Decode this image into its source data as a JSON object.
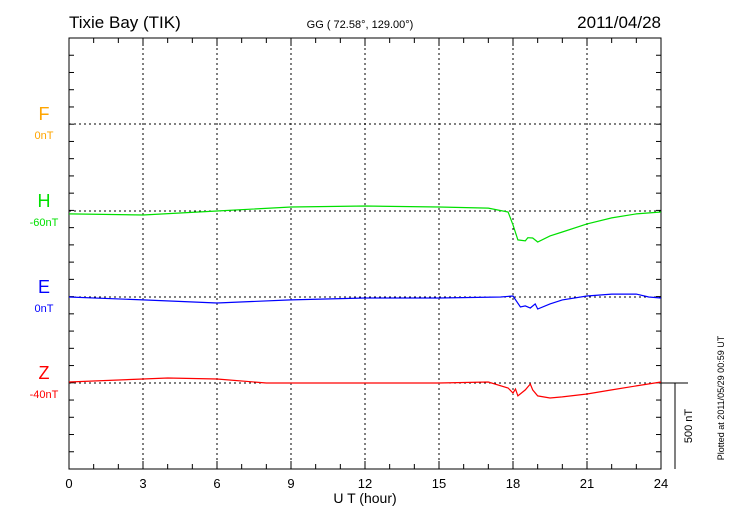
{
  "chart_data": {
    "type": "line",
    "title": "Tixie Bay (TIK)",
    "subtitle": "GG ( 72.58°, 129.00°)",
    "date": "2011/04/28",
    "xlabel": "U T (hour)",
    "xlim": [
      0,
      24
    ],
    "xticks": [
      "0",
      "3",
      "6",
      "9",
      "12",
      "15",
      "18",
      "21",
      "24"
    ],
    "scale_label": "500 nT",
    "scale_nT": 500,
    "plotted_note": "Plotted at 2011/05/29 00:59 UT",
    "grid": true,
    "series": [
      {
        "name": "F",
        "offset_label": "0nT",
        "color": "#ffa500",
        "points": []
      },
      {
        "name": "H",
        "offset_label": "-60nT",
        "color": "#00e000",
        "points": [
          [
            0,
            -17
          ],
          [
            3,
            -23
          ],
          [
            6,
            0
          ],
          [
            9,
            23
          ],
          [
            12,
            29
          ],
          [
            15,
            23
          ],
          [
            17,
            17
          ],
          [
            17.8,
            -6
          ],
          [
            18,
            -81
          ],
          [
            18.2,
            -168
          ],
          [
            18.5,
            -174
          ],
          [
            18.6,
            -155
          ],
          [
            18.8,
            -157
          ],
          [
            19,
            -180
          ],
          [
            19.5,
            -145
          ],
          [
            20,
            -122
          ],
          [
            21,
            -75
          ],
          [
            22,
            -40
          ],
          [
            23,
            -17
          ],
          [
            24,
            -6
          ]
        ]
      },
      {
        "name": "E",
        "offset_label": "0nT",
        "color": "#0000ff",
        "points": [
          [
            0,
            0
          ],
          [
            3,
            -17
          ],
          [
            6,
            -35
          ],
          [
            9,
            -17
          ],
          [
            12,
            -6
          ],
          [
            15,
            -6
          ],
          [
            17.5,
            0
          ],
          [
            18,
            6
          ],
          [
            18.3,
            -58
          ],
          [
            18.5,
            -52
          ],
          [
            18.7,
            -64
          ],
          [
            18.9,
            -40
          ],
          [
            19,
            -70
          ],
          [
            19.5,
            -40
          ],
          [
            20,
            -17
          ],
          [
            21,
            6
          ],
          [
            22,
            17
          ],
          [
            23,
            17
          ],
          [
            23.5,
            0
          ],
          [
            24,
            -6
          ]
        ]
      },
      {
        "name": "Z",
        "offset_label": "-40nT",
        "color": "#ff0000",
        "points": [
          [
            0,
            6
          ],
          [
            3,
            23
          ],
          [
            4,
            29
          ],
          [
            6,
            23
          ],
          [
            8,
            0
          ],
          [
            12,
            0
          ],
          [
            15,
            0
          ],
          [
            17,
            6
          ],
          [
            17.8,
            -29
          ],
          [
            18,
            -58
          ],
          [
            18.1,
            -35
          ],
          [
            18.2,
            -75
          ],
          [
            18.5,
            -40
          ],
          [
            18.7,
            -6
          ],
          [
            18.8,
            -40
          ],
          [
            19,
            -75
          ],
          [
            19.5,
            -87
          ],
          [
            20,
            -81
          ],
          [
            21,
            -64
          ],
          [
            22,
            -40
          ],
          [
            23,
            -17
          ],
          [
            24,
            6
          ]
        ]
      }
    ]
  }
}
